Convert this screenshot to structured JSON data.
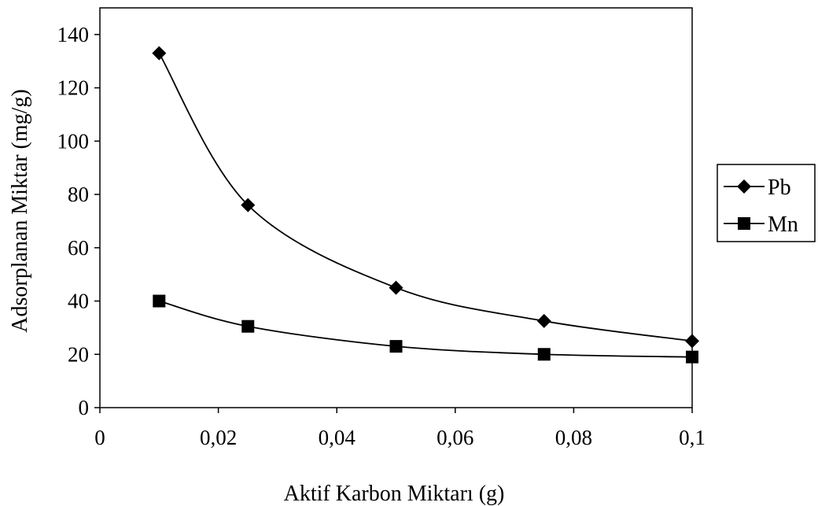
{
  "chart_data": {
    "type": "line",
    "title": "",
    "xlabel": "Aktif Karbon Miktarı (g)",
    "ylabel": "Adsorplanan Miktar (mg/g)",
    "xlim": [
      0,
      0.1
    ],
    "ylim": [
      0,
      150
    ],
    "x_ticks": [
      "0",
      "0,02",
      "0,04",
      "0,06",
      "0,08",
      "0,1"
    ],
    "x_tick_values": [
      0,
      0.02,
      0.04,
      0.06,
      0.08,
      0.1
    ],
    "y_ticks": [
      "0",
      "20",
      "40",
      "60",
      "80",
      "100",
      "120",
      "140"
    ],
    "y_tick_values": [
      0,
      20,
      40,
      60,
      80,
      100,
      120,
      140
    ],
    "grid": false,
    "smooth": true,
    "legend_position": "right",
    "x": [
      0.01,
      0.025,
      0.05,
      0.075,
      0.1
    ],
    "series": [
      {
        "name": "Pb",
        "marker": "diamond",
        "values": [
          133,
          76,
          45,
          32.5,
          25
        ]
      },
      {
        "name": "Mn",
        "marker": "square",
        "values": [
          40,
          30.5,
          23,
          20,
          19
        ]
      }
    ]
  }
}
